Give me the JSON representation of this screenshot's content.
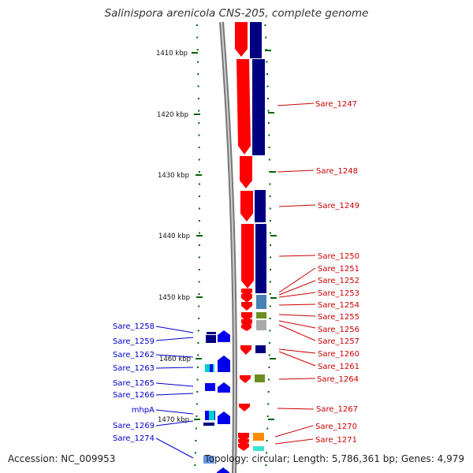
{
  "title": "Salinispora arenicola CNS-205, complete genome",
  "footer": {
    "accession": "Accession: NC_009953",
    "stats": "Topology: circular; Length: 5,786,361 bp; Genes: 4,979"
  },
  "scale": {
    "ticks": [
      "1410 kbp",
      "1420 kbp",
      "1430 kbp",
      "1440 kbp",
      "1450 kbp",
      "1460 kbp",
      "1470 kbp"
    ]
  },
  "right_labels": [
    "Sare_1247",
    "Sare_1248",
    "Sare_1249",
    "Sare_1250",
    "Sare_1251",
    "Sare_1252",
    "Sare_1253",
    "Sare_1254",
    "Sare_1255",
    "Sare_1256",
    "Sare_1257",
    "Sare_1260",
    "Sare_1261",
    "Sare_1264",
    "Sare_1267",
    "Sare_1270",
    "Sare_1271"
  ],
  "left_labels": [
    "Sare_1258",
    "Sare_1259",
    "Sare_1262",
    "Sare_1263",
    "Sare_1265",
    "Sare_1266",
    "mhpA",
    "Sare_1269",
    "Sare_1274"
  ],
  "colors": {
    "forward_gene": "#ff0000",
    "reverse_gene": "#0000ee",
    "cog_track": "#000080",
    "right_label": "#cc0000",
    "left_label": "#0000cc",
    "tick": "#006400",
    "backbone": "#888888"
  }
}
